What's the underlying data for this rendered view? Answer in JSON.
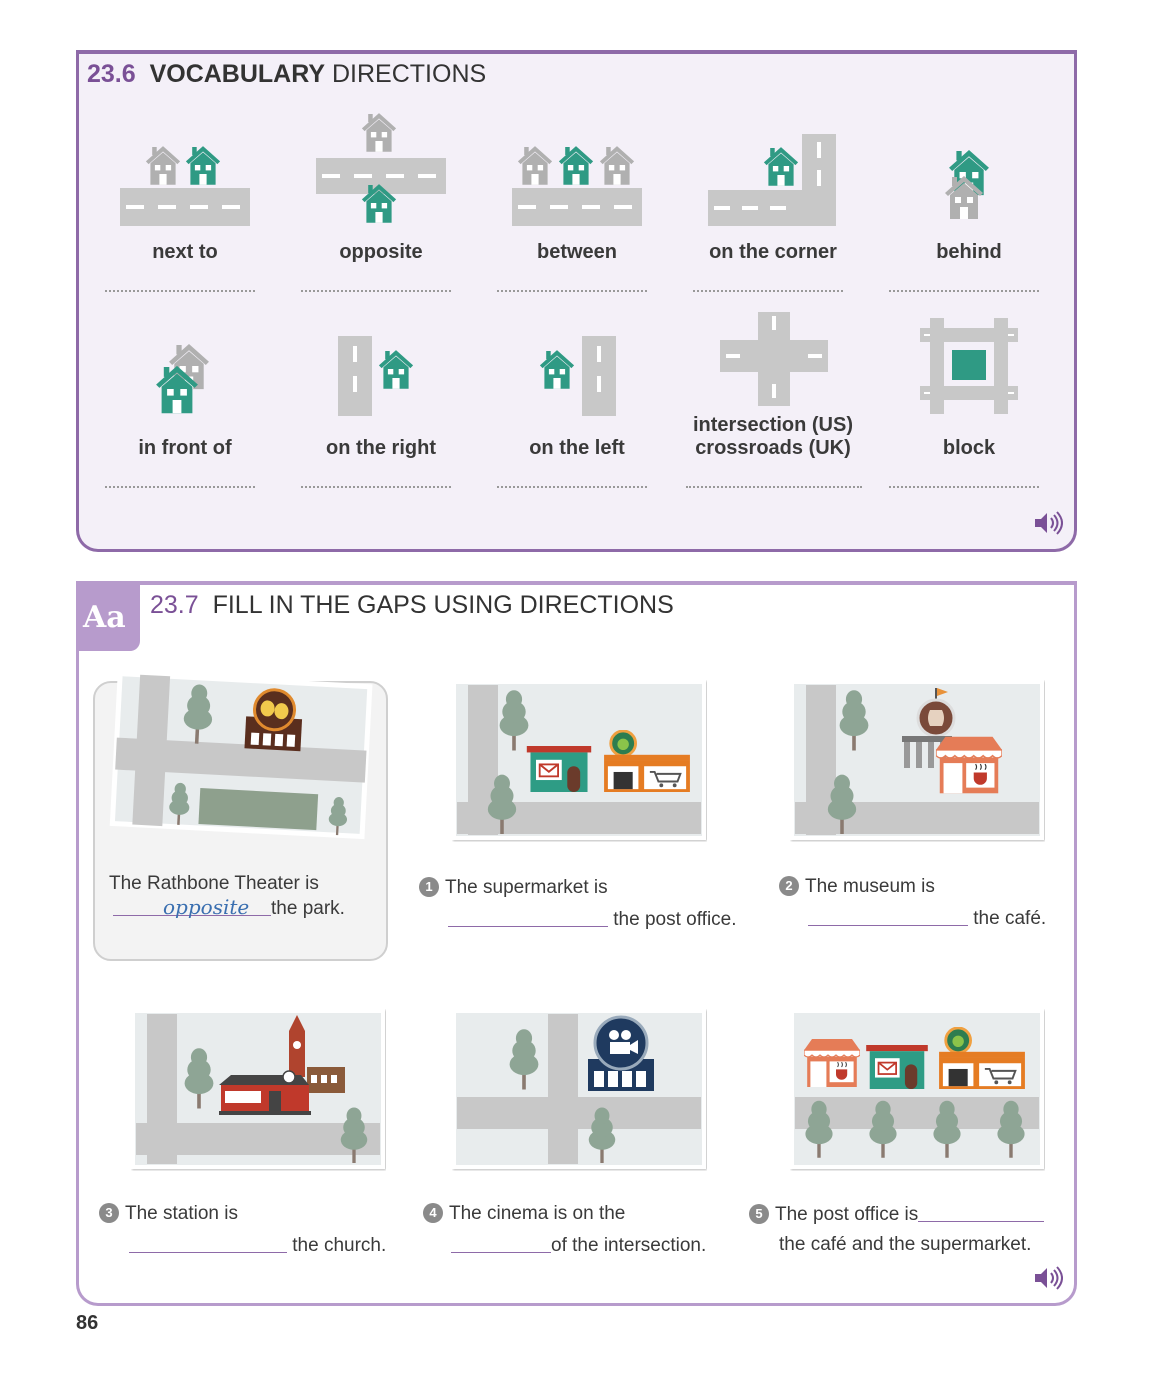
{
  "section1": {
    "number": "23.6",
    "title_bold": "VOCABULARY",
    "title_rest": "DIRECTIONS",
    "items": [
      {
        "label": "next to",
        "icon": "next-to-icon"
      },
      {
        "label": "opposite",
        "icon": "opposite-icon"
      },
      {
        "label": "between",
        "icon": "between-icon"
      },
      {
        "label": "on the corner",
        "icon": "on-the-corner-icon"
      },
      {
        "label": "behind",
        "icon": "behind-icon"
      },
      {
        "label": "in front of",
        "icon": "in-front-of-icon"
      },
      {
        "label": "on the right",
        "icon": "on-the-right-icon"
      },
      {
        "label": "on the left",
        "icon": "on-the-left-icon"
      },
      {
        "label_line1": "intersection (US)",
        "label_line2": "crossroads (UK)",
        "icon": "intersection-icon"
      },
      {
        "label": "block",
        "icon": "block-icon"
      }
    ]
  },
  "section2": {
    "badge": "Aa",
    "number": "23.7",
    "title": "FILL IN THE GAPS USING DIRECTIONS",
    "example": {
      "line1": "The Rathbone Theater is",
      "answer": "opposite",
      "line2_end": "the park."
    },
    "questions": [
      {
        "n": "1",
        "line1": "The supermarket is",
        "line2_end": "the post office."
      },
      {
        "n": "2",
        "line1": "The museum is",
        "line2_end": "the café."
      },
      {
        "n": "3",
        "line1": "The station is",
        "line2_end": "the church."
      },
      {
        "n": "4",
        "line1": "The cinema is on the",
        "line2_end": "of the intersection."
      },
      {
        "n": "5",
        "line1": "The post office is",
        "line2": "the café and the supermarket."
      }
    ]
  },
  "page_number": "86",
  "colors": {
    "accent": "#7a5096",
    "house_green": "#2f9a84",
    "house_grey": "#b0b0b0",
    "road": "#c8c8c8"
  }
}
